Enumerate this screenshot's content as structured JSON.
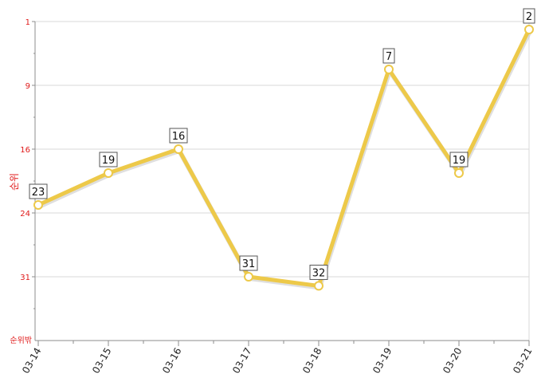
{
  "chart_data": {
    "type": "line",
    "x": [
      "03-14",
      "03-15",
      "03-16",
      "03-17",
      "03-18",
      "03-19",
      "03-20",
      "03-21"
    ],
    "series": [
      {
        "values": [
          23,
          19,
          16,
          31,
          32,
          7,
          19,
          2
        ],
        "color": "#edc949"
      }
    ],
    "ylabel": "순위",
    "y_ticks": [
      "1",
      "9",
      "16",
      "24",
      "31"
    ],
    "y_bottom_label": "순위밖",
    "y_inverted": true,
    "grid": true,
    "data_labels": true
  }
}
